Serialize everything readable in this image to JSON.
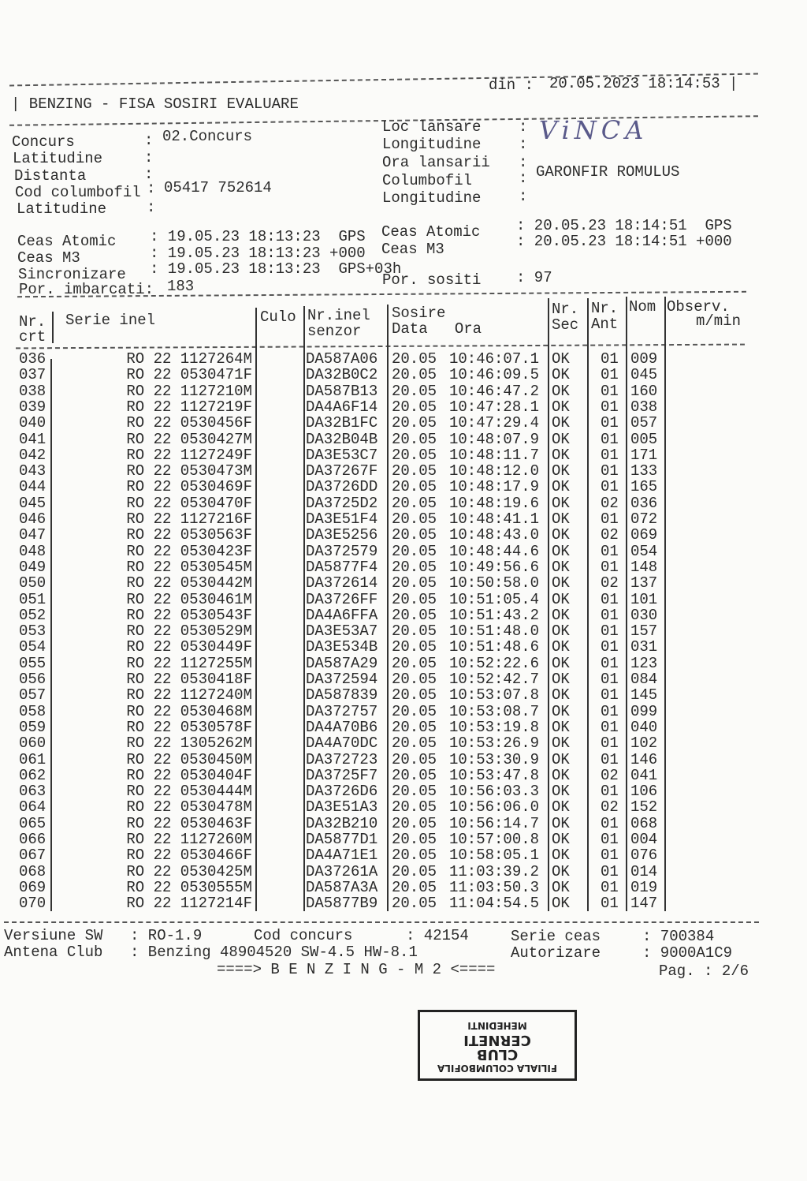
{
  "header": {
    "title": "| BENZING - FISA SOSIRI EVALUARE",
    "printed_label": "din :",
    "printed_at": "20.05.2023 18:14:53 |"
  },
  "left_info": [
    {
      "label": "Concurs",
      "sep": ":",
      "value": "02.Concurs"
    },
    {
      "label": "Latitudine",
      "sep": ":",
      "value": ""
    },
    {
      "label": "Distanta",
      "sep": ":",
      "value": ""
    },
    {
      "label": "Cod columbofil",
      "sep": ":",
      "value": "05417 752614"
    },
    {
      "label": "Latitudine",
      "sep": ":",
      "value": ""
    }
  ],
  "right_info": [
    {
      "label": "Loc lansare",
      "sep": ":",
      "value": "ViNCA"
    },
    {
      "label": "Longitudine",
      "sep": ":",
      "value": ""
    },
    {
      "label": "Ora lansarii",
      "sep": ":",
      "value": ""
    },
    {
      "label": "Columbofil",
      "sep": ":",
      "value": "GARONFIR ROMULUS"
    },
    {
      "label": "Longitudine",
      "sep": ":",
      "value": ""
    }
  ],
  "clock_left": [
    {
      "label": "Ceas Atomic",
      "value": ": 19.05.23 18:13:23  GPS"
    },
    {
      "label": "Ceas M3",
      "value": ": 19.05.23 18:13:23 +000"
    },
    {
      "label": "Sincronizare",
      "value": ": 19.05.23 18:13:23  GPS+03h"
    },
    {
      "label": "Por. imbarcati:",
      "value": "183"
    }
  ],
  "clock_right": [
    {
      "label": "Ceas Atomic",
      "value": ": 20.05.23 18:14:51  GPS"
    },
    {
      "label": "Ceas M3",
      "value": ": 20.05.23 18:14:51 +000"
    },
    {
      "label": "Por. sositi",
      "value": ": 97"
    }
  ],
  "columns": {
    "nr": [
      "Nr.",
      "crt"
    ],
    "serie": "Serie inel",
    "culo": "Culo",
    "senzor": [
      "Nr.inel",
      "senzor"
    ],
    "sosire": [
      "Sosire",
      "Data   Ora"
    ],
    "sec": [
      "Nr.",
      "Sec"
    ],
    "ant": [
      "Nr.",
      "Ant"
    ],
    "nom": "Nom",
    "observ": [
      "Observ.",
      "m/min"
    ]
  },
  "rows": [
    [
      "036",
      "RO 22 1127264M",
      "DA587A06",
      "20.05",
      "10:46:07.1",
      "OK",
      "01",
      "009"
    ],
    [
      "037",
      "RO 22 0530471F",
      "DA32B0C2",
      "20.05",
      "10:46:09.5",
      "OK",
      "01",
      "045"
    ],
    [
      "038",
      "RO 22 1127210M",
      "DA587B13",
      "20.05",
      "10:46:47.2",
      "OK",
      "01",
      "160"
    ],
    [
      "039",
      "RO 22 1127219F",
      "DA4A6F14",
      "20.05",
      "10:47:28.1",
      "OK",
      "01",
      "038"
    ],
    [
      "040",
      "RO 22 0530456F",
      "DA32B1FC",
      "20.05",
      "10:47:29.4",
      "OK",
      "01",
      "057"
    ],
    [
      "041",
      "RO 22 0530427M",
      "DA32B04B",
      "20.05",
      "10:48:07.9",
      "OK",
      "01",
      "005"
    ],
    [
      "042",
      "RO 22 1127249F",
      "DA3E53C7",
      "20.05",
      "10:48:11.7",
      "OK",
      "01",
      "171"
    ],
    [
      "043",
      "RO 22 0530473M",
      "DA37267F",
      "20.05",
      "10:48:12.0",
      "OK",
      "01",
      "133"
    ],
    [
      "044",
      "RO 22 0530469F",
      "DA3726DD",
      "20.05",
      "10:48:17.9",
      "OK",
      "01",
      "165"
    ],
    [
      "045",
      "RO 22 0530470F",
      "DA3725D2",
      "20.05",
      "10:48:19.6",
      "OK",
      "02",
      "036"
    ],
    [
      "046",
      "RO 22 1127216F",
      "DA3E51F4",
      "20.05",
      "10:48:41.1",
      "OK",
      "01",
      "072"
    ],
    [
      "047",
      "RO 22 0530563F",
      "DA3E5256",
      "20.05",
      "10:48:43.0",
      "OK",
      "02",
      "069"
    ],
    [
      "048",
      "RO 22 0530423F",
      "DA372579",
      "20.05",
      "10:48:44.6",
      "OK",
      "01",
      "054"
    ],
    [
      "049",
      "RO 22 0530545M",
      "DA5877F4",
      "20.05",
      "10:49:56.6",
      "OK",
      "01",
      "148"
    ],
    [
      "050",
      "RO 22 0530442M",
      "DA372614",
      "20.05",
      "10:50:58.0",
      "OK",
      "02",
      "137"
    ],
    [
      "051",
      "RO 22 0530461M",
      "DA3726FF",
      "20.05",
      "10:51:05.4",
      "OK",
      "01",
      "101"
    ],
    [
      "052",
      "RO 22 0530543F",
      "DA4A6FFA",
      "20.05",
      "10:51:43.2",
      "OK",
      "01",
      "030"
    ],
    [
      "053",
      "RO 22 0530529M",
      "DA3E53A7",
      "20.05",
      "10:51:48.0",
      "OK",
      "01",
      "157"
    ],
    [
      "054",
      "RO 22 0530449F",
      "DA3E534B",
      "20.05",
      "10:51:48.6",
      "OK",
      "01",
      "031"
    ],
    [
      "055",
      "RO 22 1127255M",
      "DA587A29",
      "20.05",
      "10:52:22.6",
      "OK",
      "01",
      "123"
    ],
    [
      "056",
      "RO 22 0530418F",
      "DA372594",
      "20.05",
      "10:52:42.7",
      "OK",
      "01",
      "084"
    ],
    [
      "057",
      "RO 22 1127240M",
      "DA587839",
      "20.05",
      "10:53:07.8",
      "OK",
      "01",
      "145"
    ],
    [
      "058",
      "RO 22 0530468M",
      "DA372757",
      "20.05",
      "10:53:08.7",
      "OK",
      "01",
      "099"
    ],
    [
      "059",
      "RO 22 0530578F",
      "DA4A70B6",
      "20.05",
      "10:53:19.8",
      "OK",
      "01",
      "040"
    ],
    [
      "060",
      "RO 22 1305262M",
      "DA4A70DC",
      "20.05",
      "10:53:26.9",
      "OK",
      "01",
      "102"
    ],
    [
      "061",
      "RO 22 0530450M",
      "DA372723",
      "20.05",
      "10:53:30.9",
      "OK",
      "01",
      "146"
    ],
    [
      "062",
      "RO 22 0530404F",
      "DA3725F7",
      "20.05",
      "10:53:47.8",
      "OK",
      "02",
      "041"
    ],
    [
      "063",
      "RO 22 0530444M",
      "DA3726D6",
      "20.05",
      "10:56:03.3",
      "OK",
      "01",
      "106"
    ],
    [
      "064",
      "RO 22 0530478M",
      "DA3E51A3",
      "20.05",
      "10:56:06.0",
      "OK",
      "02",
      "152"
    ],
    [
      "065",
      "RO 22 0530463F",
      "DA32B210",
      "20.05",
      "10:56:14.7",
      "OK",
      "01",
      "068"
    ],
    [
      "066",
      "RO 22 1127260M",
      "DA5877D1",
      "20.05",
      "10:57:00.8",
      "OK",
      "01",
      "004"
    ],
    [
      "067",
      "RO 22 0530466F",
      "DA4A71E1",
      "20.05",
      "10:58:05.1",
      "OK",
      "01",
      "076"
    ],
    [
      "068",
      "RO 22 0530425M",
      "DA37261A",
      "20.05",
      "11:03:39.2",
      "OK",
      "01",
      "014"
    ],
    [
      "069",
      "RO 22 0530555M",
      "DA587A3A",
      "20.05",
      "11:03:50.3",
      "OK",
      "01",
      "019"
    ],
    [
      "070",
      "RO 22 1127214F",
      "DA5877B9",
      "20.05",
      "11:04:54.5",
      "OK",
      "01",
      "147"
    ]
  ],
  "footer": {
    "sw_label": "Versiune SW",
    "sw_value": ": RO-1.9",
    "cod_label": "Cod concurs",
    "cod_value": ": 42154",
    "serie_label": "Serie ceas",
    "serie_value": ": 700384",
    "antena_label": "Antena Club",
    "antena_value": ": Benzing 48904520 SW-4.5 HW-8.1",
    "autorizare_label": "Autorizare",
    "autorizare_value": ": 9000A1C9",
    "banner": "====> B E N Z I N G - M 2 <====",
    "page": "Pag. : 2/6"
  },
  "stamp": [
    "FILIALA COLUMBOFILA",
    "CLUB",
    "CERNETI",
    "MEHEDINTI"
  ]
}
